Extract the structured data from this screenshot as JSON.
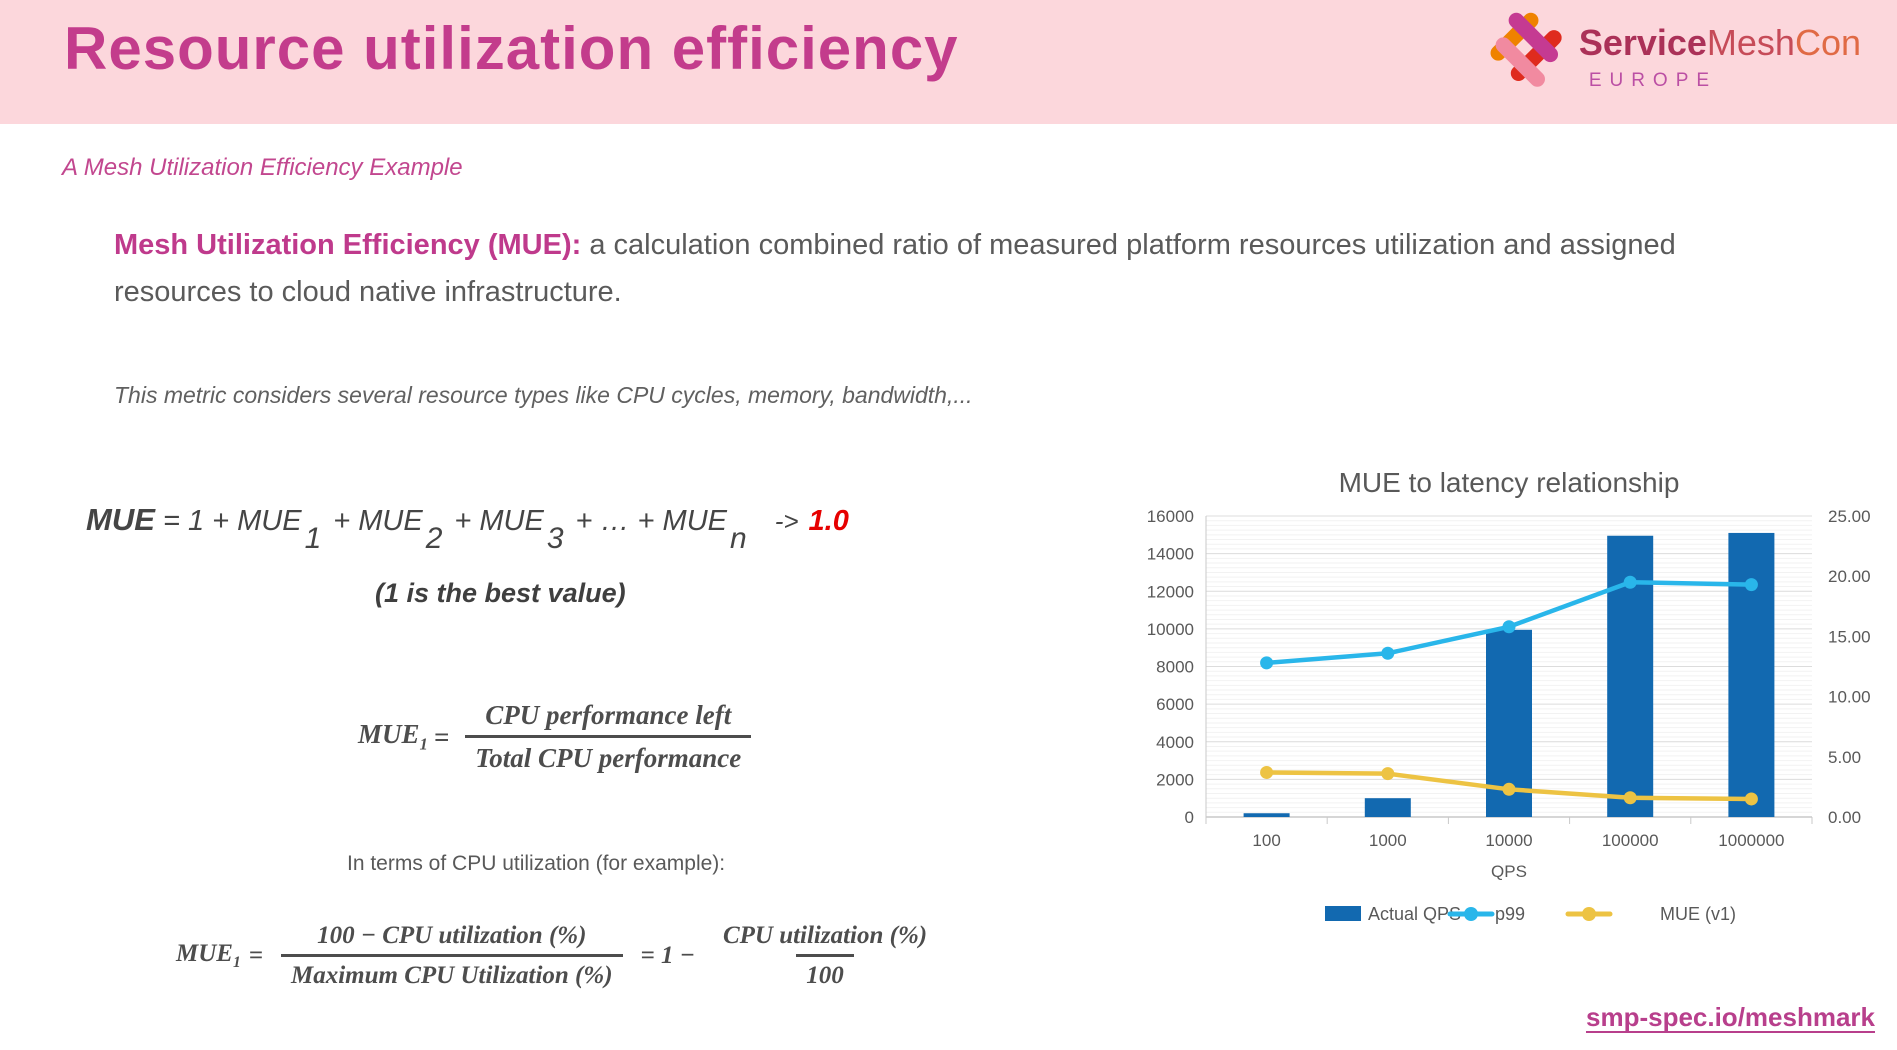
{
  "header": {
    "title": "Resource utilization efficiency"
  },
  "logo": {
    "service": "Service",
    "mesh": "Mesh",
    "con": "Con",
    "region": "EUROPE",
    "colors": {
      "magenta": "#c53a92",
      "orange": "#ef8200",
      "red": "#df2b1e",
      "pink": "#f18aa0"
    }
  },
  "subtitle": "A Mesh Utilization Efficiency Example",
  "definition": {
    "lead": "Mesh Utilization Efficiency (MUE):",
    "body": " a calculation combined ratio of measured platform resources utilization and assigned resources to cloud native infrastructure."
  },
  "note": "This metric considers several resource types like CPU cycles, memory, bandwidth,...",
  "formula_sum": {
    "lhs": "MUE",
    "t1": " = 1 + MUE",
    "s1": "1",
    "t2": "+ MUE",
    "s2": "2",
    "t3": "+ MUE",
    "s3": "3",
    "t4": "+ … + MUE",
    "s4": "n",
    "arrow": "->",
    "target": "1.0",
    "caption": "(1 is the best value)"
  },
  "formula_mue1": {
    "lhs": "MUE",
    "sub": "1",
    "equals": "=",
    "numerator": "CPU performance left",
    "denominator": "Total CPU performance"
  },
  "cpu_example_label": "In terms of CPU utilization (for example):",
  "formula_cpu": {
    "lhs": "MUE",
    "sub": "1",
    "equals": "=",
    "frac1_num": "100 − CPU utilization (%)",
    "frac1_den": "Maximum CPU Utilization (%)",
    "mid": "= 1 −",
    "frac2_num": "CPU utilization (%)",
    "frac2_den": "100"
  },
  "chart_data": {
    "type": "combo-bar-line",
    "title": "MUE to latency relationship",
    "categories": [
      "100",
      "1000",
      "10000",
      "100000",
      "1000000"
    ],
    "xlabel": "QPS",
    "left_axis": {
      "min": 0,
      "max": 16000,
      "step": 2000
    },
    "right_axis": {
      "min": 0,
      "max": 25,
      "step": 5,
      "decimals": 2
    },
    "grid": true,
    "legend_position": "bottom",
    "series": [
      {
        "name": "Actual QPS",
        "kind": "bar",
        "axis": "left",
        "color": "#1269b0",
        "values": [
          200,
          1000,
          9950,
          14950,
          15100
        ]
      },
      {
        "name": "p99",
        "kind": "line",
        "axis": "right",
        "color": "#29b6ea",
        "values": [
          12.8,
          13.6,
          15.8,
          19.5,
          19.3
        ]
      },
      {
        "name": "MUE (v1)",
        "kind": "line",
        "axis": "right",
        "color": "#edc343",
        "values": [
          3.7,
          3.6,
          2.3,
          1.6,
          1.5
        ]
      }
    ]
  },
  "footer": {
    "link": "smp-spec.io/meshmark"
  }
}
